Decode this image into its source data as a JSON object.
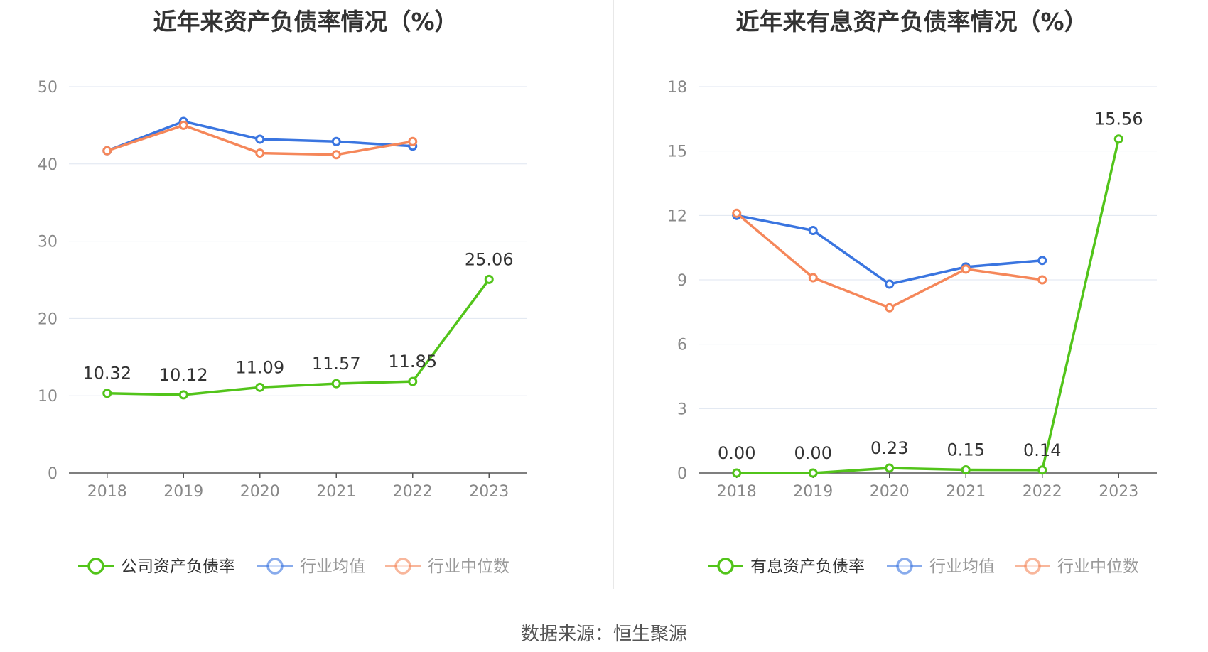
{
  "colors": {
    "company": "#52c41a",
    "avg": "#3a75e0",
    "median": "#f5875a",
    "grid": "#dfe6f0",
    "axis": "#555555"
  },
  "source": "数据来源：恒生聚源",
  "chart_data": [
    {
      "type": "line",
      "title": "近年来资产负债率情况（%）",
      "categories": [
        "2018",
        "2019",
        "2020",
        "2021",
        "2022",
        "2023"
      ],
      "ylim": [
        0,
        50
      ],
      "yticks": [
        "0",
        "10",
        "20",
        "30",
        "40",
        "50"
      ],
      "grid": true,
      "legend": "bottom",
      "series": [
        {
          "name": "公司资产负债率",
          "color": "#52c41a",
          "values": [
            10.32,
            10.12,
            11.09,
            11.57,
            11.85,
            25.06
          ],
          "labels": [
            "10.32",
            "10.12",
            "11.09",
            "11.57",
            "11.85",
            "25.06"
          ]
        },
        {
          "name": "行业均值",
          "color": "#3a75e0",
          "values": [
            41.7,
            45.5,
            43.2,
            42.9,
            42.3,
            null
          ]
        },
        {
          "name": "行业中位数",
          "color": "#f5875a",
          "values": [
            41.7,
            45.0,
            41.4,
            41.2,
            42.9,
            null
          ]
        }
      ]
    },
    {
      "type": "line",
      "title": "近年来有息资产负债率情况（%）",
      "categories": [
        "2018",
        "2019",
        "2020",
        "2021",
        "2022",
        "2023"
      ],
      "ylim": [
        0,
        18
      ],
      "yticks": [
        "0",
        "3",
        "6",
        "9",
        "12",
        "15",
        "18"
      ],
      "grid": true,
      "legend": "bottom",
      "series": [
        {
          "name": "有息资产负债率",
          "color": "#52c41a",
          "values": [
            0.0,
            0.0,
            0.23,
            0.15,
            0.14,
            15.56
          ],
          "labels": [
            "0.00",
            "0.00",
            "0.23",
            "0.15",
            "0.14",
            "15.56"
          ]
        },
        {
          "name": "行业均值",
          "color": "#3a75e0",
          "values": [
            12.0,
            11.3,
            8.8,
            9.6,
            9.9,
            null
          ]
        },
        {
          "name": "行业中位数",
          "color": "#f5875a",
          "values": [
            12.1,
            9.1,
            7.7,
            9.5,
            9.0,
            null
          ]
        }
      ]
    }
  ]
}
